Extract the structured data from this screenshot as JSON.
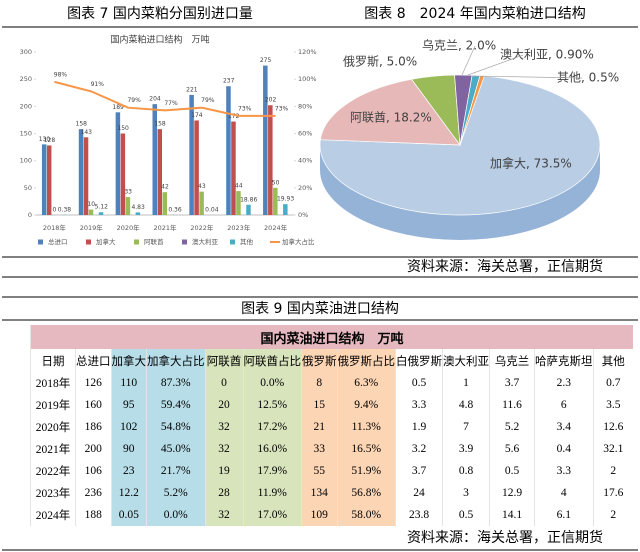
{
  "header": {
    "figure7_title": "图表 7 国内菜粕分国别进口量",
    "figure8_title": "图表 8　2024 年国内菜粕进口结构"
  },
  "chart_data": [
    {
      "type": "bar",
      "title": "国内菜粕进口结构　万吨",
      "categories": [
        "2018年",
        "2019年",
        "2020年",
        "2021年",
        "2022年",
        "2023年",
        "2024年"
      ],
      "series": [
        {
          "name": "总进口",
          "color": "#4f81bd",
          "values": [
            130,
            158,
            189,
            204,
            221,
            237,
            275
          ]
        },
        {
          "name": "加拿大",
          "color": "#c0504d",
          "values": [
            128,
            143,
            150,
            158,
            174,
            172,
            202
          ]
        },
        {
          "name": "阿联酋",
          "color": "#9bbb59",
          "values": [
            0,
            10,
            33,
            42,
            43,
            44,
            50
          ]
        },
        {
          "name": "澳大利亚",
          "color": "#8064a2",
          "labels": false,
          "values": [
            0,
            0,
            0,
            0,
            0,
            0,
            0
          ]
        },
        {
          "name": "其他",
          "color": "#4bacc6",
          "values": [
            0.38,
            5.12,
            4.83,
            0.36,
            0.04,
            18.86,
            19.93
          ]
        },
        {
          "name": "加拿大占比",
          "type": "line",
          "axis": "y2",
          "color": "#f79646",
          "values": [
            98,
            91,
            79,
            77,
            79,
            73,
            73
          ],
          "value_labels": [
            "98%",
            "91%",
            "79%",
            "77%",
            "79%",
            "73%",
            "73%"
          ]
        }
      ],
      "ylim": [
        0,
        300
      ],
      "yticks": [
        0,
        50,
        100,
        150,
        200,
        250,
        300
      ],
      "y2lim": [
        0,
        120
      ],
      "y2ticks": [
        {
          "value": 0,
          "label": "0%"
        },
        {
          "value": 20,
          "label": "20%"
        },
        {
          "value": 40,
          "label": "40%"
        },
        {
          "value": 60,
          "label": "60%"
        },
        {
          "value": 80,
          "label": "80%"
        },
        {
          "value": 100,
          "label": "100%"
        },
        {
          "value": 120,
          "label": "120%"
        }
      ],
      "grid": false,
      "legend": "bottom"
    },
    {
      "type": "pie",
      "values": [
        73.5,
        18.2,
        5.0,
        2.0,
        0.9,
        0.5
      ],
      "value_labels": [
        "加拿大, 73.5%",
        "阿联酋, 18.2%",
        "俄罗斯, 5.0%",
        "乌克兰, 2.0%",
        "澳大利亚, 0.90%",
        "其他, 0.5%"
      ],
      "colors": [
        "#b9cde5",
        "#e6b9b8",
        "#9bbb59",
        "#8064a2",
        "#4bacc6",
        "#f79646"
      ]
    }
  ],
  "source_top": "资料来源：海关总署，正信期货",
  "table_title": "图表 9 国内菜油进口结构",
  "table": {
    "title": "国内菜油进口结构　万吨",
    "columns": [
      "日期",
      "总进口",
      "加拿大",
      "加拿大占比",
      "阿联酋",
      "阿联酋占比",
      "俄罗斯",
      "俄罗斯占比",
      "白俄罗斯",
      "澳大利亚",
      "乌克兰",
      "哈萨克斯坦",
      "其他"
    ],
    "rows": [
      [
        "2018年",
        "126",
        "110",
        "87.3%",
        "0",
        "0.0%",
        "8",
        "6.3%",
        "0.5",
        "1",
        "3.7",
        "2.3",
        "0.7"
      ],
      [
        "2019年",
        "160",
        "95",
        "59.4%",
        "20",
        "12.5%",
        "15",
        "9.4%",
        "3.3",
        "4.8",
        "11.6",
        "6",
        "3.5"
      ],
      [
        "2020年",
        "186",
        "102",
        "54.8%",
        "32",
        "17.2%",
        "21",
        "11.3%",
        "1.9",
        "7",
        "5.2",
        "3.4",
        "12.6"
      ],
      [
        "2021年",
        "200",
        "90",
        "45.0%",
        "32",
        "16.0%",
        "33",
        "16.5%",
        "3.2",
        "3.9",
        "5.6",
        "0.4",
        "32.1"
      ],
      [
        "2022年",
        "106",
        "23",
        "21.7%",
        "19",
        "17.9%",
        "55",
        "51.9%",
        "3.7",
        "0.8",
        "0.5",
        "3.3",
        "2"
      ],
      [
        "2023年",
        "236",
        "12.2",
        "5.2%",
        "28",
        "11.9%",
        "134",
        "56.8%",
        "24",
        "3",
        "12.9",
        "4",
        "17.6"
      ],
      [
        "2024年",
        "188",
        "0.05",
        "0.0%",
        "32",
        "17.0%",
        "109",
        "58.0%",
        "23.8",
        "0.5",
        "14.1",
        "6.1",
        "2"
      ]
    ]
  },
  "source_bottom": "资料来源：海关总署，正信期货"
}
